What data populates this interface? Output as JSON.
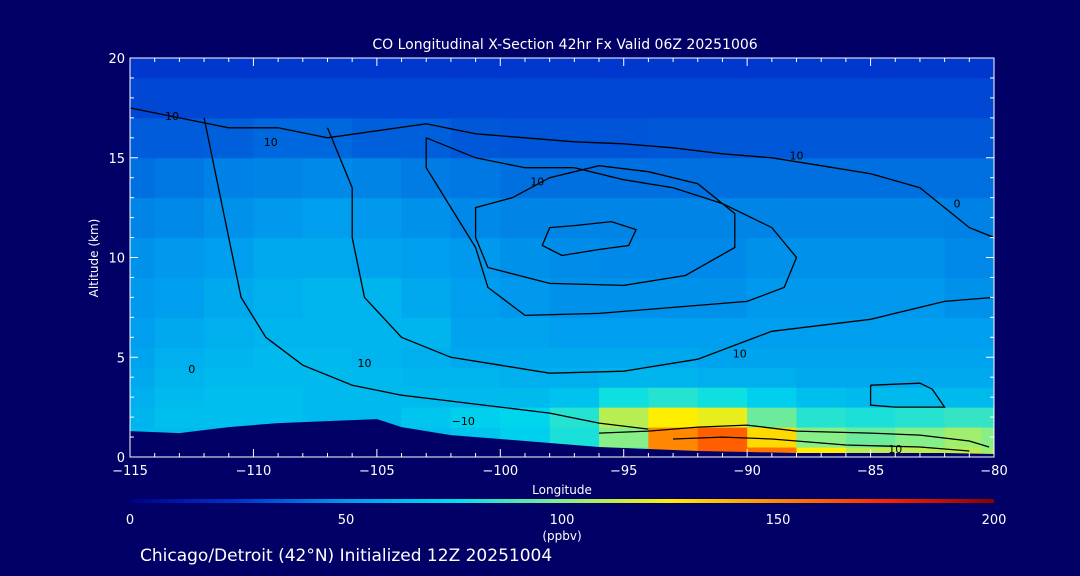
{
  "chart_data": {
    "type": "heatmap",
    "title": "CO Longitudinal X-Section 42hr  Fx Valid 06Z 20251006",
    "xlabel": "Longitude",
    "ylabel": "Altitude (km)",
    "xlim": [
      -115,
      -80
    ],
    "ylim": [
      0,
      20
    ],
    "x_ticks": [
      -115,
      -110,
      -105,
      -100,
      -95,
      -90,
      -85,
      -80
    ],
    "x_tick_labels": [
      "−115",
      "−110",
      "−105",
      "−100",
      "−95",
      "−90",
      "−85",
      "−80"
    ],
    "y_ticks": [
      0,
      5,
      10,
      15,
      20
    ],
    "y_tick_labels": [
      "0",
      "5",
      "10",
      "15",
      "20"
    ],
    "x": [
      -115,
      -113,
      -111,
      -109,
      -107,
      -105,
      -103,
      -101,
      -99,
      -97,
      -95,
      -93,
      -91,
      -89,
      -87,
      -85,
      -83,
      -81,
      -80
    ],
    "y": [
      0,
      1,
      2,
      3,
      4,
      5,
      6,
      8,
      10,
      12,
      14,
      16,
      18,
      20
    ],
    "z": [
      [
        60,
        62,
        60,
        60,
        60,
        62,
        62,
        65,
        70,
        75,
        90,
        150,
        160,
        155,
        125,
        110,
        110,
        110,
        105
      ],
      [
        62,
        62,
        60,
        60,
        60,
        62,
        64,
        66,
        70,
        80,
        100,
        150,
        160,
        130,
        100,
        95,
        100,
        105,
        100
      ],
      [
        60,
        64,
        64,
        64,
        62,
        62,
        66,
        70,
        72,
        82,
        110,
        125,
        120,
        95,
        82,
        80,
        82,
        85,
        85
      ],
      [
        58,
        62,
        64,
        64,
        62,
        62,
        62,
        62,
        62,
        65,
        78,
        82,
        78,
        70,
        64,
        62,
        62,
        62,
        62
      ],
      [
        56,
        60,
        62,
        62,
        62,
        62,
        60,
        60,
        58,
        58,
        60,
        60,
        58,
        58,
        56,
        56,
        56,
        56,
        56
      ],
      [
        54,
        58,
        60,
        62,
        62,
        60,
        58,
        56,
        56,
        56,
        56,
        56,
        54,
        54,
        54,
        54,
        54,
        54,
        54
      ],
      [
        52,
        56,
        58,
        60,
        60,
        60,
        60,
        54,
        54,
        52,
        52,
        52,
        52,
        52,
        52,
        52,
        52,
        52,
        52
      ],
      [
        50,
        52,
        56,
        58,
        60,
        60,
        56,
        52,
        50,
        48,
        48,
        48,
        48,
        50,
        50,
        50,
        50,
        48,
        48
      ],
      [
        48,
        50,
        52,
        56,
        56,
        54,
        52,
        50,
        48,
        47,
        46,
        46,
        46,
        48,
        48,
        48,
        48,
        46,
        46
      ],
      [
        45,
        46,
        48,
        50,
        52,
        50,
        48,
        46,
        45,
        45,
        45,
        45,
        45,
        45,
        45,
        45,
        45,
        44,
        44
      ],
      [
        40,
        42,
        44,
        45,
        46,
        45,
        43,
        42,
        40,
        40,
        40,
        40,
        40,
        40,
        40,
        40,
        40,
        40,
        40
      ],
      [
        35,
        35,
        36,
        38,
        38,
        36,
        36,
        34,
        33,
        33,
        33,
        34,
        34,
        34,
        34,
        34,
        34,
        34,
        34
      ],
      [
        30,
        30,
        30,
        30,
        30,
        30,
        30,
        30,
        30,
        30,
        30,
        30,
        30,
        30,
        30,
        30,
        30,
        30,
        30
      ],
      [
        26,
        26,
        26,
        26,
        26,
        26,
        26,
        26,
        26,
        26,
        26,
        26,
        26,
        26,
        26,
        26,
        26,
        26,
        26
      ]
    ],
    "terrain": {
      "lon": [
        -115,
        -113,
        -111,
        -109,
        -107,
        -105,
        -104,
        -102,
        -100,
        -98,
        -96,
        -94,
        -92,
        -90,
        -88,
        -86,
        -84,
        -82,
        -80
      ],
      "alt": [
        1.3,
        1.2,
        1.5,
        1.7,
        1.8,
        1.9,
        1.5,
        1.1,
        0.9,
        0.7,
        0.5,
        0.4,
        0.3,
        0.25,
        0.2,
        0.2,
        0.2,
        0.2,
        0.15
      ]
    },
    "contours": [
      {
        "level": "10",
        "points": [
          [
            -115,
            17.5
          ],
          [
            -113,
            17
          ],
          [
            -111,
            16.5
          ],
          [
            -109,
            16.5
          ],
          [
            -107,
            16
          ],
          [
            -103,
            16.7
          ],
          [
            -101,
            16.2
          ],
          [
            -99,
            16
          ],
          [
            -97,
            15.8
          ],
          [
            -95,
            15.7
          ],
          [
            -93,
            15.5
          ],
          [
            -91,
            15.2
          ],
          [
            -89,
            15
          ],
          [
            -87,
            14.6
          ],
          [
            -85,
            14.2
          ],
          [
            -83,
            13.5
          ],
          [
            -82,
            12.5
          ],
          [
            -81,
            11.5
          ],
          [
            -80,
            11
          ]
        ]
      },
      {
        "level": "10",
        "points": [
          [
            -112,
            17
          ],
          [
            -111.5,
            14
          ],
          [
            -111,
            11
          ],
          [
            -110.5,
            8
          ],
          [
            -109.5,
            6
          ],
          [
            -108,
            4.6
          ],
          [
            -106,
            3.6
          ],
          [
            -104,
            3.1
          ],
          [
            -102,
            2.8
          ],
          [
            -100,
            2.5
          ],
          [
            -98,
            2.2
          ],
          [
            -96,
            1.7
          ],
          [
            -94,
            1.4
          ]
        ]
      },
      {
        "level": "10",
        "points": [
          [
            -107,
            16.5
          ],
          [
            -106,
            13.5
          ],
          [
            -106,
            11
          ],
          [
            -105.5,
            8
          ],
          [
            -104,
            6
          ],
          [
            -102,
            5
          ],
          [
            -100,
            4.6
          ],
          [
            -98,
            4.2
          ],
          [
            -95,
            4.3
          ],
          [
            -92,
            4.9
          ],
          [
            -89,
            6.3
          ],
          [
            -85,
            6.9
          ],
          [
            -82,
            7.8
          ],
          [
            -80,
            8
          ]
        ]
      },
      {
        "level": "10",
        "points": [
          [
            -103,
            16
          ],
          [
            -101,
            15
          ],
          [
            -99,
            14.5
          ],
          [
            -97,
            14.5
          ],
          [
            -95,
            13.9
          ],
          [
            -93,
            13.5
          ],
          [
            -91,
            12.7
          ],
          [
            -89,
            11.5
          ],
          [
            -88,
            10
          ],
          [
            -88.5,
            8.5
          ],
          [
            -90,
            7.8
          ],
          [
            -93,
            7.5
          ],
          [
            -96,
            7.2
          ],
          [
            -99,
            7.1
          ],
          [
            -100.5,
            8.5
          ],
          [
            -101,
            10.5
          ],
          [
            -102,
            12.5
          ],
          [
            -103,
            14.5
          ],
          [
            -103,
            16
          ]
        ]
      },
      {
        "level": "20",
        "points": [
          [
            -99.5,
            13
          ],
          [
            -98,
            14
          ],
          [
            -96,
            14.6
          ],
          [
            -94,
            14.3
          ],
          [
            -92,
            13.7
          ],
          [
            -90.5,
            12.2
          ],
          [
            -90.5,
            10.5
          ],
          [
            -92.5,
            9.1
          ],
          [
            -95,
            8.6
          ],
          [
            -98,
            8.7
          ],
          [
            -100.5,
            9.5
          ],
          [
            -101,
            11
          ],
          [
            -101,
            12.5
          ],
          [
            -99.5,
            13
          ]
        ]
      },
      {
        "level": "30",
        "points": [
          [
            -98,
            11.5
          ],
          [
            -97,
            11.6
          ],
          [
            -95.5,
            11.8
          ],
          [
            -94.5,
            11.4
          ],
          [
            -94.8,
            10.6
          ],
          [
            -96,
            10.4
          ],
          [
            -97.5,
            10.1
          ],
          [
            -98.3,
            10.6
          ],
          [
            -98,
            11.5
          ]
        ]
      },
      {
        "level": "10",
        "points": [
          [
            -96,
            1.2
          ],
          [
            -94,
            1.3
          ],
          [
            -92,
            1.5
          ],
          [
            -90,
            1.6
          ],
          [
            -88,
            1.3
          ],
          [
            -85,
            1.2
          ],
          [
            -83,
            1.1
          ],
          [
            -81,
            0.8
          ],
          [
            -80.2,
            0.5
          ]
        ]
      },
      {
        "level": "10",
        "points": [
          [
            -93,
            0.9
          ],
          [
            -91,
            1.0
          ],
          [
            -89,
            0.9
          ],
          [
            -86,
            0.6
          ],
          [
            -83,
            0.5
          ],
          [
            -81,
            0.3
          ]
        ]
      },
      {
        "level": "10",
        "points": [
          [
            -85,
            3.6
          ],
          [
            -83,
            3.7
          ],
          [
            -82.5,
            3.4
          ],
          [
            -82,
            2.5
          ],
          [
            -84,
            2.5
          ],
          [
            -85,
            2.6
          ],
          [
            -85,
            3.6
          ]
        ]
      }
    ],
    "contour_labels": [
      {
        "text": "10",
        "lon": -113.3,
        "lat": 16.9
      },
      {
        "text": "10",
        "lon": -109.3,
        "lat": 15.6
      },
      {
        "text": "10",
        "lon": -98.5,
        "lat": 13.6
      },
      {
        "text": "10",
        "lon": -88,
        "lat": 14.9
      },
      {
        "text": "0",
        "lon": -81.5,
        "lat": 12.5
      },
      {
        "text": "10",
        "lon": -90.3,
        "lat": 5
      },
      {
        "text": "0",
        "lon": -112.5,
        "lat": 4.2
      },
      {
        "text": "10",
        "lon": -105.5,
        "lat": 4.5
      },
      {
        "text": "−10",
        "lon": -101.5,
        "lat": 1.6
      },
      {
        "text": "10",
        "lon": -84,
        "lat": 0.2
      }
    ],
    "colorbar": {
      "min": 0,
      "max": 200,
      "ticks": [
        "0",
        "50",
        "100",
        "150",
        "200"
      ],
      "unit": "(ppbv)",
      "stops": [
        "#000088",
        "#0033cc",
        "#0099ee",
        "#00ddee",
        "#88ee88",
        "#ffee00",
        "#ff8800",
        "#ff2200",
        "#880000"
      ]
    }
  },
  "footer": {
    "caption": "Chicago/Detroit (42°N) Initialized 12Z 20251004"
  }
}
